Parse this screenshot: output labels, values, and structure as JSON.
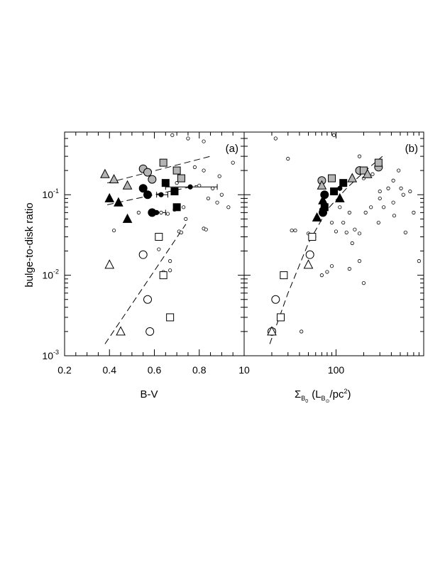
{
  "figure": {
    "ylabel": "bulge-to-disk ratio",
    "y_ticks": [
      {
        "value": 0.001,
        "base": "10",
        "exp": "-3"
      },
      {
        "value": 0.01,
        "base": "10",
        "exp": "-2"
      },
      {
        "value": 0.1,
        "base": "10",
        "exp": "-1"
      }
    ],
    "colors": {
      "gray": "#b4b4b4",
      "black": "#000000",
      "white": "#ffffff"
    }
  },
  "chart_data": [
    {
      "type": "scatter",
      "panel_label": "(a)",
      "xlabel": "B-V",
      "xlim": [
        0.2,
        1.0
      ],
      "x_ticks": [
        {
          "value": 0.2,
          "label": "0.2"
        },
        {
          "value": 0.4,
          "label": "0.4"
        },
        {
          "value": 0.6,
          "label": "0.6"
        },
        {
          "value": 0.8,
          "label": "0.8"
        }
      ],
      "x_scale": "linear",
      "ylim": [
        0.001,
        0.6
      ],
      "y_scale": "log",
      "series": [
        {
          "marker": "small-circle",
          "fill": "white",
          "points": [
            [
              0.68,
              0.55
            ],
            [
              0.75,
              0.5
            ],
            [
              0.82,
              0.46
            ],
            [
              0.95,
              0.25
            ],
            [
              0.78,
              0.22
            ],
            [
              0.82,
              0.2
            ],
            [
              0.89,
              0.17
            ],
            [
              0.7,
              0.14
            ],
            [
              0.8,
              0.13
            ],
            [
              0.86,
              0.12
            ],
            [
              0.9,
              0.1
            ],
            [
              0.84,
              0.09
            ],
            [
              0.88,
              0.08
            ],
            [
              0.93,
              0.07
            ],
            [
              0.73,
              0.07
            ],
            [
              0.69,
              0.065
            ],
            [
              0.63,
              0.06
            ],
            [
              0.66,
              0.058
            ],
            [
              0.53,
              0.06
            ],
            [
              0.74,
              0.05
            ],
            [
              0.42,
              0.036
            ],
            [
              0.82,
              0.038
            ],
            [
              0.83,
              0.037
            ],
            [
              0.71,
              0.035
            ],
            [
              0.72,
              0.034
            ],
            [
              0.62,
              0.03
            ],
            [
              0.62,
              0.021
            ],
            [
              0.67,
              0.015
            ],
            [
              0.67,
              0.0115
            ],
            [
              0.64,
              0.011
            ],
            [
              0.58,
              0.002
            ]
          ]
        },
        {
          "marker": "circle",
          "fill": "gray",
          "points": [
            [
              0.55,
              0.21
            ],
            [
              0.57,
              0.19
            ],
            [
              0.59,
              0.155
            ]
          ]
        },
        {
          "marker": "square",
          "fill": "gray",
          "points": [
            [
              0.64,
              0.25
            ],
            [
              0.7,
              0.2
            ],
            [
              0.72,
              0.16
            ]
          ]
        },
        {
          "marker": "triangle",
          "fill": "gray",
          "points": [
            [
              0.38,
              0.18
            ],
            [
              0.42,
              0.155
            ],
            [
              0.48,
              0.13
            ]
          ]
        },
        {
          "marker": "circle",
          "fill": "black",
          "points": [
            [
              0.55,
              0.12
            ],
            [
              0.57,
              0.1
            ],
            [
              0.59,
              0.06
            ]
          ]
        },
        {
          "marker": "small-circle",
          "fill": "black",
          "points": [
            [
              0.63,
              0.1
            ],
            [
              0.76,
              0.125
            ],
            [
              0.61,
              0.06
            ]
          ]
        },
        {
          "marker": "square",
          "fill": "black",
          "points": [
            [
              0.65,
              0.14
            ],
            [
              0.69,
              0.11
            ],
            [
              0.7,
              0.07
            ]
          ]
        },
        {
          "marker": "triangle",
          "fill": "black",
          "points": [
            [
              0.4,
              0.09
            ],
            [
              0.44,
              0.08
            ],
            [
              0.48,
              0.05
            ]
          ]
        },
        {
          "marker": "circle",
          "fill": "white",
          "points": [
            [
              0.55,
              0.018
            ],
            [
              0.57,
              0.005
            ],
            [
              0.58,
              0.002
            ]
          ]
        },
        {
          "marker": "square",
          "fill": "white",
          "points": [
            [
              0.62,
              0.03
            ],
            [
              0.64,
              0.01
            ],
            [
              0.67,
              0.003
            ]
          ]
        },
        {
          "marker": "triangle",
          "fill": "white",
          "points": [
            [
              0.4,
              0.0135
            ],
            [
              0.45,
              0.002
            ]
          ]
        }
      ],
      "error_bars": [
        {
          "x": 0.76,
          "y": 0.125,
          "xerr": [
            0.11,
            0.12
          ]
        },
        {
          "x": 0.61,
          "y": 0.06,
          "xerr": [
            0.02,
            0.04
          ]
        },
        {
          "x": 0.63,
          "y": 0.1,
          "xerr": [
            0.02,
            0.03
          ]
        }
      ],
      "fit_lines": [
        {
          "x": [
            0.39,
            0.85
          ],
          "y": [
            0.14,
            0.3
          ]
        },
        {
          "x": [
            0.39,
            0.79
          ],
          "y": [
            0.075,
            0.13
          ]
        },
        {
          "x": [
            0.38,
            0.74
          ],
          "y": [
            0.0014,
            0.043
          ]
        }
      ]
    },
    {
      "type": "scatter",
      "panel_label": "(b)",
      "xlabel_symbol": "Σ",
      "xlabel_sub": "B",
      "xlabel_subsub": "0",
      "xlabel_paren_open": "(L",
      "xlabel_paren_sub": "B",
      "xlabel_paren_subsub": "⊙",
      "xlabel_unit": "/pc",
      "xlabel_unit_sup": "2",
      "xlabel_close": ")",
      "xlim": [
        10,
        900
      ],
      "x_ticks": [
        {
          "value": 10,
          "label": "10"
        },
        {
          "value": 100,
          "label": "100"
        }
      ],
      "x_scale": "log",
      "ylim": [
        0.001,
        0.6
      ],
      "y_scale": "log",
      "series": [
        {
          "marker": "small-circle",
          "fill": "white",
          "points": [
            [
              22,
              0.5
            ],
            [
              95,
              0.55
            ],
            [
              30,
              0.28
            ],
            [
              180,
              0.3
            ],
            [
              480,
              0.2
            ],
            [
              200,
              0.16
            ],
            [
              250,
              0.18
            ],
            [
              420,
              0.15
            ],
            [
              510,
              0.12
            ],
            [
              540,
              0.1
            ],
            [
              300,
              0.11
            ],
            [
              370,
              0.12
            ],
            [
              420,
              0.08
            ],
            [
              640,
              0.11
            ],
            [
              700,
              0.06
            ],
            [
              330,
              0.07
            ],
            [
              240,
              0.07
            ],
            [
              210,
              0.06
            ],
            [
              140,
              0.06
            ],
            [
              110,
              0.07
            ],
            [
              430,
              0.055
            ],
            [
              290,
              0.045
            ],
            [
              570,
              0.034
            ],
            [
              100,
              0.035
            ],
            [
              130,
              0.034
            ],
            [
              160,
              0.037
            ],
            [
              180,
              0.033
            ],
            [
              150,
              0.025
            ],
            [
              180,
              0.015
            ],
            [
              200,
              0.008
            ],
            [
              140,
              0.012
            ],
            [
              90,
              0.013
            ],
            [
              70,
              0.01
            ],
            [
              80,
              0.011
            ],
            [
              36,
              0.036
            ],
            [
              33,
              0.036
            ],
            [
              50,
              0.033
            ],
            [
              58,
              0.03
            ],
            [
              42,
              0.002
            ],
            [
              90,
              0.045
            ],
            [
              120,
              0.045
            ],
            [
              300,
              0.09
            ],
            [
              800,
              0.015
            ]
          ]
        },
        {
          "marker": "circle",
          "fill": "gray",
          "points": [
            [
              70,
              0.15
            ],
            [
              180,
              0.2
            ],
            [
              290,
              0.22
            ]
          ]
        },
        {
          "marker": "square",
          "fill": "gray",
          "points": [
            [
              90,
              0.16
            ],
            [
              200,
              0.2
            ],
            [
              290,
              0.25
            ]
          ]
        },
        {
          "marker": "triangle",
          "fill": "gray",
          "points": [
            [
              70,
              0.13
            ],
            [
              150,
              0.16
            ],
            [
              220,
              0.18
            ]
          ]
        },
        {
          "marker": "circle",
          "fill": "black",
          "points": [
            [
              75,
              0.1
            ],
            [
              72,
              0.06
            ]
          ]
        },
        {
          "marker": "small-circle",
          "fill": "black",
          "points": [
            [
              110,
              0.12
            ],
            [
              70,
              0.065
            ]
          ]
        },
        {
          "marker": "square",
          "fill": "black",
          "points": [
            [
              120,
              0.14
            ],
            [
              95,
              0.11
            ],
            [
              75,
              0.07
            ]
          ]
        },
        {
          "marker": "triangle",
          "fill": "black",
          "points": [
            [
              62,
              0.052
            ],
            [
              72,
              0.085
            ],
            [
              110,
              0.09
            ]
          ]
        },
        {
          "marker": "circle",
          "fill": "white",
          "points": [
            [
              22,
              0.005
            ],
            [
              52,
              0.018
            ],
            [
              20,
              0.002
            ]
          ]
        },
        {
          "marker": "square",
          "fill": "white",
          "points": [
            [
              55,
              0.03
            ],
            [
              27,
              0.01
            ],
            [
              25,
              0.003
            ]
          ]
        },
        {
          "marker": "triangle",
          "fill": "white",
          "points": [
            [
              50,
              0.0135
            ],
            [
              20,
              0.002
            ]
          ]
        }
      ],
      "error_bars": [],
      "fit_lines": [
        {
          "x": [
            19,
            30,
            50,
            80,
            130,
            200,
            320
          ],
          "y": [
            0.0014,
            0.006,
            0.025,
            0.065,
            0.12,
            0.19,
            0.3
          ]
        }
      ]
    }
  ]
}
